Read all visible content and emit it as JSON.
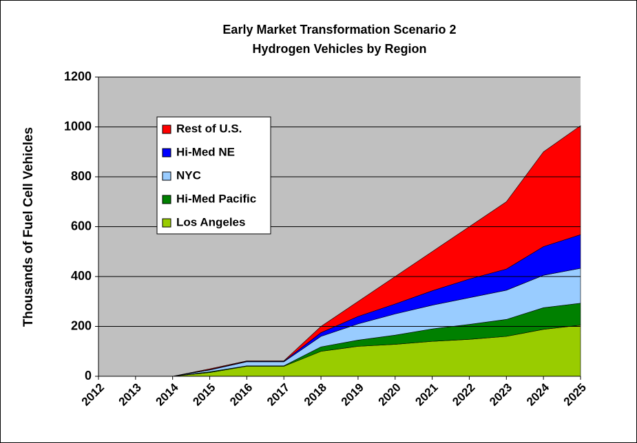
{
  "chart_data": {
    "type": "stacked_area",
    "title": "Early Market Transformation Scenario 2",
    "subtitle": "Hydrogen Vehicles by Region",
    "y_label": "Thousands of Fuel Cell Vehicles",
    "categories": [
      "2012",
      "2013",
      "2014",
      "2015",
      "2016",
      "2017",
      "2018",
      "2019",
      "2020",
      "2021",
      "2022",
      "2023",
      "2024",
      "2025"
    ],
    "series": [
      {
        "name": "Los Angeles",
        "color": "#99cc00",
        "values": [
          0,
          0,
          0,
          15,
          40,
          40,
          100,
          120,
          128,
          140,
          148,
          160,
          188,
          205
        ]
      },
      {
        "name": "Hi-Med Pacific",
        "color": "#008000",
        "values": [
          0,
          0,
          0,
          3,
          2,
          2,
          18,
          25,
          37,
          50,
          60,
          68,
          87,
          88
        ]
      },
      {
        "name": "NYC",
        "color": "#99ccff",
        "values": [
          0,
          0,
          0,
          7,
          16,
          16,
          42,
          65,
          85,
          95,
          107,
          117,
          130,
          140
        ]
      },
      {
        "name": "Hi-Med NE",
        "color": "#0000ff",
        "values": [
          0,
          0,
          0,
          2,
          2,
          2,
          15,
          30,
          40,
          58,
          75,
          85,
          115,
          135
        ]
      },
      {
        "name": "Rest of U.S.",
        "color": "#ff0000",
        "values": [
          0,
          0,
          0,
          3,
          2,
          2,
          25,
          60,
          110,
          157,
          210,
          270,
          380,
          437
        ]
      }
    ],
    "ylim": [
      0,
      1200
    ],
    "yticks": [
      0,
      200,
      400,
      600,
      800,
      1000,
      1200
    ],
    "grid": true
  }
}
